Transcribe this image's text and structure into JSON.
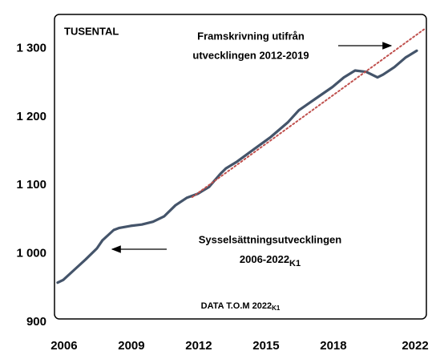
{
  "chart_data": {
    "type": "line",
    "unit_label": "TUSENTAL",
    "annotations": [
      {
        "text": "Framskrivning utifrån"
      },
      {
        "text": "utvecklingen 2012-2019"
      },
      {
        "text": "Sysselsättningsutvecklingen"
      },
      {
        "text": "2006-2022",
        "sub": "K1"
      },
      {
        "text": "DATA T.O.M 2022",
        "sub": "K1"
      }
    ],
    "series": [
      {
        "color": "#44546a",
        "style": "solid",
        "x": [
          2006.0,
          2006.25,
          2006.75,
          2007.25,
          2007.75,
          2008.0,
          2008.5,
          2008.75,
          2009.25,
          2009.75,
          2010.25,
          2010.75,
          2011.25,
          2011.75,
          2012.25,
          2012.75,
          2013.25,
          2013.5,
          2014.0,
          2014.75,
          2015.5,
          2016.25,
          2016.75,
          2017.5,
          2018.25,
          2018.75,
          2019.25,
          2019.75,
          2020.25,
          2020.5,
          2021.0,
          2021.5,
          2022.0
        ],
        "values": [
          953,
          957,
          972,
          987,
          1003,
          1015,
          1030,
          1033,
          1036,
          1038,
          1042,
          1050,
          1066,
          1077,
          1083,
          1093,
          1112,
          1120,
          1130,
          1148,
          1166,
          1187,
          1205,
          1222,
          1239,
          1253,
          1263,
          1261,
          1253,
          1257,
          1268,
          1282,
          1292
        ]
      },
      {
        "color": "#c0504d",
        "style": "dotted",
        "x": [
          2012.0,
          2022.4
        ],
        "values": [
          1078,
          1325
        ]
      }
    ],
    "xlim": [
      2005.86,
      2022.43
    ],
    "xticks": [
      2006,
      2009,
      2012,
      2015,
      2018,
      2022
    ],
    "ylim": [
      900,
      1345
    ],
    "yticks": [
      900,
      {
        "value": 1000,
        "label": "1 000"
      },
      {
        "value": 1100,
        "label": "1 100"
      },
      {
        "value": 1200,
        "label": "1 200"
      },
      {
        "value": 1300,
        "label": "1 300"
      }
    ],
    "grid": false
  }
}
